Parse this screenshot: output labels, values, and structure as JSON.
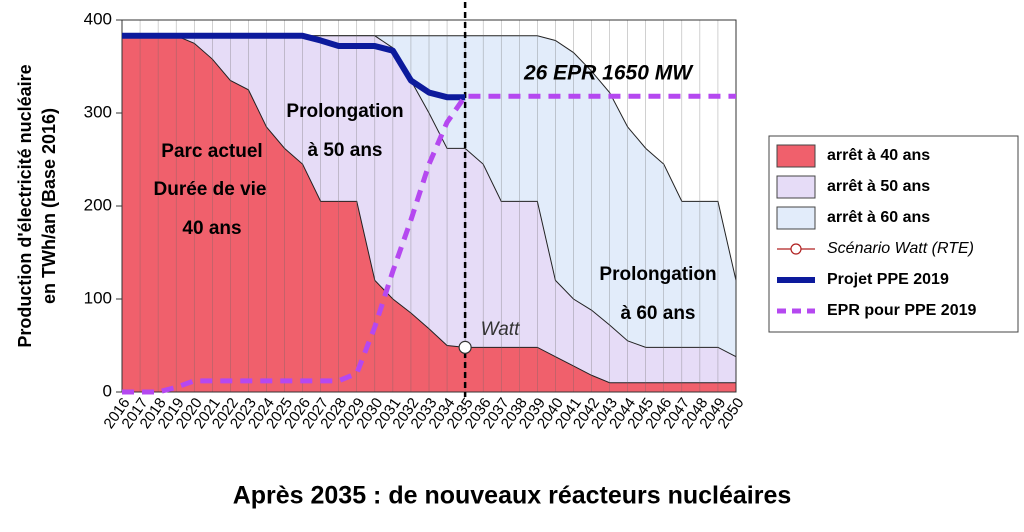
{
  "chart_data": {
    "type": "area",
    "title": "Après 2035 : de nouveaux réacteurs nucléaires",
    "ylabel": [
      "Production d'électricité nucléaire",
      "en TWh/an (Base 2016)"
    ],
    "categories": [
      "2016",
      "2017",
      "2018",
      "2019",
      "2020",
      "2021",
      "2022",
      "2023",
      "2024",
      "2025",
      "2026",
      "2027",
      "2028",
      "2029",
      "2030",
      "2031",
      "2032",
      "2033",
      "2034",
      "2035",
      "2036",
      "2037",
      "2038",
      "2039",
      "2040",
      "2041",
      "2042",
      "2043",
      "2044",
      "2045",
      "2046",
      "2047",
      "2048",
      "2049",
      "2050"
    ],
    "ylim": [
      0,
      400
    ],
    "yticks": [
      0,
      100,
      200,
      300,
      400
    ],
    "series": [
      {
        "name": "arrêt à 60 ans",
        "style": "area",
        "color": "#e2ecfa",
        "values": [
          383,
          383,
          383,
          383,
          383,
          383,
          383,
          383,
          383,
          383,
          383,
          383,
          383,
          383,
          383,
          383,
          383,
          383,
          383,
          383,
          383,
          383,
          383,
          383,
          378,
          365,
          345,
          322,
          285,
          262,
          245,
          205,
          205,
          205,
          120
        ]
      },
      {
        "name": "arrêt à 50 ans",
        "style": "area",
        "color": "#e6dcf7",
        "values": [
          383,
          383,
          383,
          383,
          383,
          383,
          383,
          383,
          383,
          383,
          383,
          383,
          383,
          383,
          383,
          370,
          335,
          300,
          262,
          262,
          245,
          205,
          205,
          205,
          120,
          100,
          88,
          72,
          55,
          48,
          48,
          48,
          48,
          48,
          38
        ]
      },
      {
        "name": "arrêt à 40 ans",
        "style": "area",
        "color": "#f0606c",
        "values": [
          383,
          383,
          383,
          383,
          375,
          358,
          335,
          325,
          285,
          262,
          245,
          205,
          205,
          205,
          120,
          100,
          85,
          68,
          50,
          48,
          48,
          48,
          48,
          48,
          38,
          28,
          18,
          10,
          10,
          10,
          10,
          10,
          10,
          10,
          10
        ]
      },
      {
        "name": "Scénario Watt (RTE)",
        "style": "marker",
        "color": "#b02020",
        "values": [
          null,
          null,
          null,
          null,
          null,
          null,
          null,
          null,
          null,
          null,
          null,
          null,
          null,
          null,
          null,
          null,
          null,
          null,
          null,
          48,
          null,
          null,
          null,
          null,
          null,
          null,
          null,
          null,
          null,
          null,
          null,
          null,
          null,
          null,
          null
        ]
      },
      {
        "name": "Projet PPE 2019",
        "style": "line",
        "color": "#0c1a9c",
        "values": [
          383,
          383,
          383,
          383,
          383,
          383,
          383,
          383,
          383,
          383,
          383,
          378,
          372,
          372,
          372,
          367,
          335,
          322,
          317,
          317,
          null,
          null,
          null,
          null,
          null,
          null,
          null,
          null,
          null,
          null,
          null,
          null,
          null,
          null,
          null
        ]
      },
      {
        "name": "EPR pour PPE 2019",
        "style": "dashed",
        "color": "#b548f0",
        "values": [
          0,
          0,
          0,
          5,
          12,
          12,
          12,
          12,
          12,
          12,
          12,
          12,
          12,
          20,
          70,
          130,
          185,
          245,
          290,
          318,
          318,
          318,
          318,
          318,
          318,
          318,
          318,
          318,
          318,
          318,
          318,
          318,
          318,
          318,
          318
        ]
      }
    ],
    "vline": "2035",
    "annotations": [
      "Parc actuel",
      "Durée de vie",
      "40 ans",
      "Prolongation",
      "à 50 ans",
      "Prolongation",
      "à 60 ans",
      "26 EPR 1650 MW",
      "Watt"
    ],
    "legend": "right",
    "grid": true
  }
}
